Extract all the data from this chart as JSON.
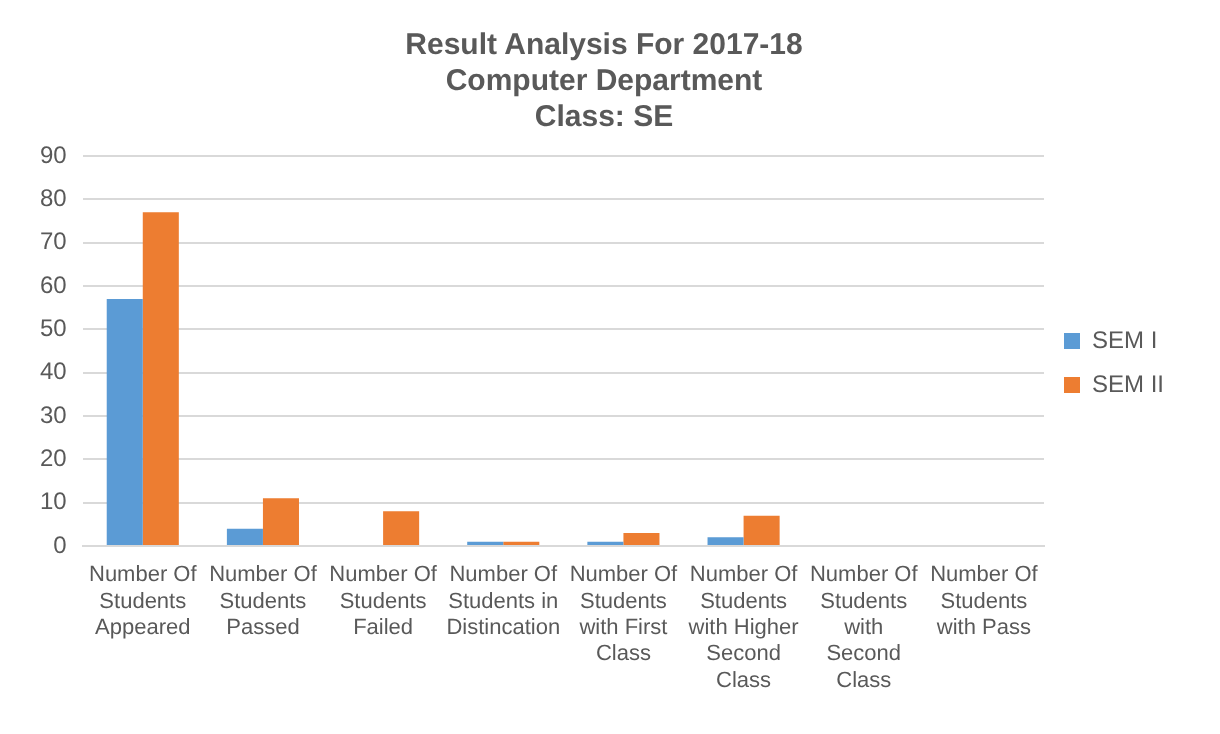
{
  "chart_data": {
    "type": "bar",
    "title": "Result Analysis For 2017-18",
    "subtitle": "Computer Department\nClass: SE",
    "categories": [
      "Number Of Students Appeared",
      "Number Of Students Passed",
      "Number Of Students Failed",
      "Number Of Students in Distincation",
      "Number Of Students with First Class",
      "Number Of Students with Higher Second Class",
      "Number Of Students with Second Class",
      "Number Of Students with Pass"
    ],
    "series": [
      {
        "name": "SEM I",
        "color": "#5b9bd5",
        "values": [
          57,
          4,
          0,
          1,
          1,
          2,
          0,
          0
        ]
      },
      {
        "name": "SEM II",
        "color": "#ed7d31",
        "values": [
          77,
          11,
          8,
          1,
          3,
          7,
          0,
          0
        ]
      }
    ],
    "ylim": [
      0,
      90
    ],
    "yticks": [
      0,
      10,
      20,
      30,
      40,
      50,
      60,
      70,
      80,
      90
    ],
    "grid": "y",
    "legend": "right"
  }
}
